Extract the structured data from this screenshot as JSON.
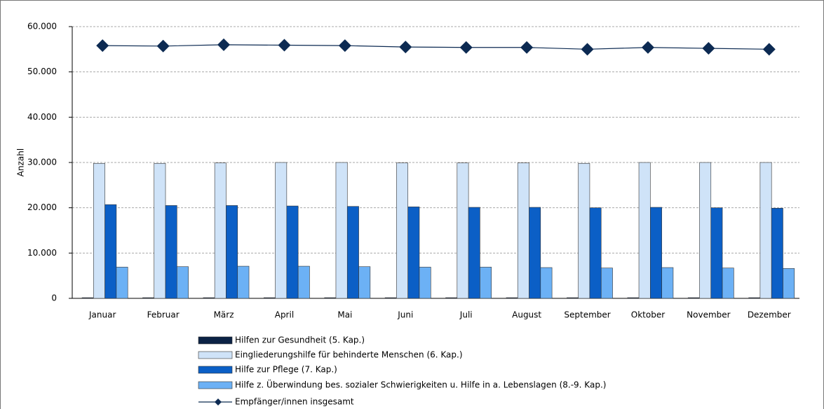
{
  "chart_data": {
    "type": "bar",
    "y_label": "Anzahl",
    "categories": [
      "Januar",
      "Februar",
      "März",
      "April",
      "Mai",
      "Juni",
      "Juli",
      "August",
      "September",
      "Oktober",
      "November",
      "Dezember"
    ],
    "series": [
      {
        "name": "Hilfen zur Gesundheit (5. Kap.)",
        "type": "bar",
        "color": "#0b2245",
        "values": [
          150,
          150,
          150,
          150,
          150,
          150,
          150,
          150,
          150,
          150,
          150,
          150
        ]
      },
      {
        "name": "Eingliederungshilfe für behinderte Menschen (6. Kap.)",
        "type": "bar",
        "color": "#cfe3f8",
        "values": [
          29800,
          29800,
          29900,
          30000,
          30000,
          29900,
          29900,
          29900,
          29800,
          30000,
          30000,
          30000
        ]
      },
      {
        "name": "Hilfe zur Pflege (7. Kap.)",
        "type": "bar",
        "color": "#0b5fc6",
        "values": [
          20700,
          20500,
          20500,
          20400,
          20300,
          20200,
          20100,
          20100,
          20000,
          20100,
          20000,
          19900
        ]
      },
      {
        "name": "Hilfe z. Überwindung bes. sozialer Schwierigkeiten u. Hilfe in a. Lebenslagen (8.-9. Kap.)",
        "type": "bar",
        "color": "#6cb1f5",
        "values": [
          6900,
          7000,
          7100,
          7100,
          7000,
          6900,
          6900,
          6800,
          6700,
          6800,
          6700,
          6600
        ]
      },
      {
        "name": "Empfänger/innen insgesamt",
        "type": "line",
        "color": "#0c2a52",
        "values": [
          55800,
          55700,
          56000,
          55900,
          55800,
          55500,
          55400,
          55400,
          55000,
          55400,
          55200,
          55000
        ]
      }
    ],
    "ylim": [
      0,
      60000
    ],
    "yticks": [
      0,
      {
        "value": 10000,
        "label": "10.000"
      },
      {
        "value": 20000,
        "label": "20.000"
      },
      {
        "value": 30000,
        "label": "30.000"
      },
      {
        "value": 40000,
        "label": "40.000"
      },
      {
        "value": 50000,
        "label": "50.000"
      },
      {
        "value": 60000,
        "label": "60.000"
      }
    ],
    "grid": true
  }
}
